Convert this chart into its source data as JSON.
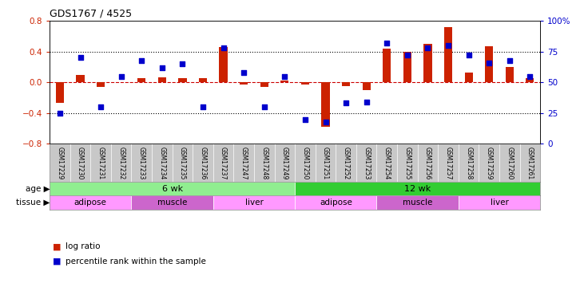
{
  "title": "GDS1767 / 4525",
  "samples": [
    "GSM17229",
    "GSM17230",
    "GSM17231",
    "GSM17232",
    "GSM17233",
    "GSM17234",
    "GSM17235",
    "GSM17236",
    "GSM17237",
    "GSM17247",
    "GSM17248",
    "GSM17249",
    "GSM17250",
    "GSM17251",
    "GSM17252",
    "GSM17253",
    "GSM17254",
    "GSM17255",
    "GSM17256",
    "GSM17257",
    "GSM17258",
    "GSM17259",
    "GSM17260",
    "GSM17261"
  ],
  "log_ratio": [
    -0.27,
    0.1,
    -0.06,
    0.0,
    0.05,
    0.07,
    0.05,
    0.05,
    0.46,
    -0.03,
    -0.06,
    0.02,
    -0.03,
    -0.58,
    -0.05,
    -0.1,
    0.44,
    0.4,
    0.5,
    0.72,
    0.13,
    0.47,
    0.2,
    0.06
  ],
  "percentile": [
    25,
    70,
    30,
    55,
    68,
    62,
    65,
    30,
    78,
    58,
    30,
    55,
    20,
    18,
    33,
    34,
    82,
    72,
    78,
    80,
    72,
    66,
    68,
    55
  ],
  "ylim_left": [
    -0.8,
    0.8
  ],
  "ylim_right": [
    0,
    100
  ],
  "yticks_left": [
    -0.8,
    -0.4,
    0.0,
    0.4,
    0.8
  ],
  "yticks_right": [
    0,
    25,
    50,
    75,
    100
  ],
  "ytick_labels_right": [
    "0",
    "25",
    "50",
    "75",
    "100%"
  ],
  "hline_dotted": [
    0.4,
    -0.4
  ],
  "age_groups": [
    {
      "label": "6 wk",
      "start": 0,
      "end": 12,
      "color": "#90EE90"
    },
    {
      "label": "12 wk",
      "start": 12,
      "end": 24,
      "color": "#32CD32"
    }
  ],
  "tissue_groups": [
    {
      "label": "adipose",
      "start": 0,
      "end": 4,
      "color": "#FF99FF"
    },
    {
      "label": "muscle",
      "start": 4,
      "end": 8,
      "color": "#CC66CC"
    },
    {
      "label": "liver",
      "start": 8,
      "end": 12,
      "color": "#FF99FF"
    },
    {
      "label": "adipose",
      "start": 12,
      "end": 16,
      "color": "#FF99FF"
    },
    {
      "label": "muscle",
      "start": 16,
      "end": 20,
      "color": "#CC66CC"
    },
    {
      "label": "liver",
      "start": 20,
      "end": 24,
      "color": "#FF99FF"
    }
  ],
  "bar_color": "#CC2200",
  "dot_color": "#0000CC",
  "zero_line_color": "#CC0000",
  "dotted_line_color": "#000000",
  "bg_color": "#FFFFFF",
  "axis_label_color_left": "#CC2200",
  "axis_label_color_right": "#0000CC",
  "sample_bg_color": "#C8C8C8",
  "legend_bar_label": "log ratio",
  "legend_dot_label": "percentile rank within the sample"
}
